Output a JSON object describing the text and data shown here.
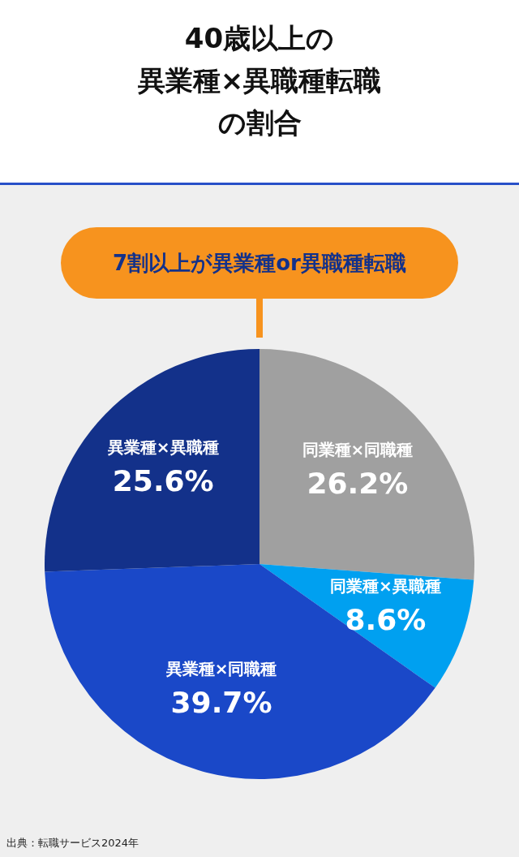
{
  "chart_data": {
    "type": "pie",
    "title": [
      "40歳以上の",
      "異業種×異職種転職",
      "の割合"
    ],
    "categories": [
      "同業種×同職種",
      "同業種×異職種",
      "異業種×同職種",
      "異業種×異職種"
    ],
    "values": [
      26.2,
      8.6,
      39.7,
      25.6
    ],
    "colors": [
      "#a0a0a0",
      "#00a0f0",
      "#1a48c8",
      "#13318a"
    ],
    "value_labels": [
      "26.2%",
      "8.6%",
      "39.7%",
      "25.6%"
    ],
    "annotations": [
      "7割以上が異業種or異職種転職",
      "出典：転職サービス2024年"
    ],
    "legend": false
  }
}
